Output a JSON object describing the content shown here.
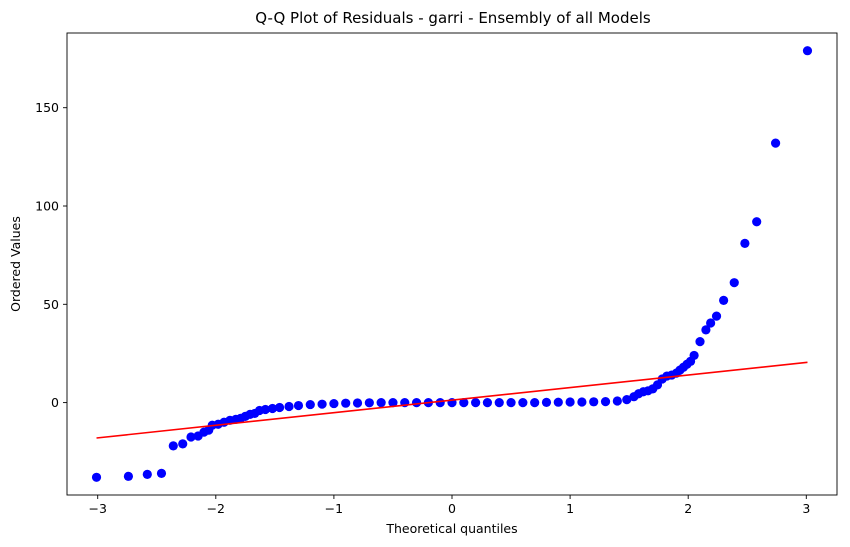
{
  "chart_data": {
    "type": "scatter",
    "title": "Q-Q Plot of Residuals - garri  - Ensembly of all Models",
    "xlabel": "Theoretical quantiles",
    "ylabel": "Ordered Values",
    "xlim": [
      -3.26,
      3.26
    ],
    "ylim": [
      -47,
      188
    ],
    "x_ticks": [
      -3,
      -2,
      -1,
      0,
      1,
      2,
      3
    ],
    "x_tick_labels": [
      "−3",
      "−2",
      "−1",
      "0",
      "1",
      "2",
      "3"
    ],
    "y_ticks": [
      0,
      50,
      100,
      150
    ],
    "y_tick_labels": [
      "0",
      "50",
      "100",
      "150"
    ],
    "grid": false,
    "series": [
      {
        "kind": "points",
        "color": "#0000ff",
        "points": [
          [
            -3.01,
            -38
          ],
          [
            -2.74,
            -37.5
          ],
          [
            -2.58,
            -36.5
          ],
          [
            -2.46,
            -36
          ],
          [
            -2.36,
            -22
          ],
          [
            -2.28,
            -21
          ],
          [
            -2.21,
            -17.5
          ],
          [
            -2.15,
            -17
          ],
          [
            -2.1,
            -15
          ],
          [
            -2.06,
            -14
          ],
          [
            -2.03,
            -11.5
          ],
          [
            -1.98,
            -11
          ],
          [
            -1.93,
            -10
          ],
          [
            -1.88,
            -9
          ],
          [
            -1.83,
            -8.5
          ],
          [
            -1.79,
            -8
          ],
          [
            -1.75,
            -7
          ],
          [
            -1.71,
            -6
          ],
          [
            -1.67,
            -5.5
          ],
          [
            -1.63,
            -4
          ],
          [
            -1.58,
            -3.5
          ],
          [
            -1.52,
            -3
          ],
          [
            -1.46,
            -2.5
          ],
          [
            -1.38,
            -2
          ],
          [
            -1.3,
            -1.5
          ],
          [
            -1.2,
            -1
          ],
          [
            -1.1,
            -0.8
          ],
          [
            -1.0,
            -0.5
          ],
          [
            -0.9,
            -0.3
          ],
          [
            -0.8,
            -0.2
          ],
          [
            -0.7,
            -0.1
          ],
          [
            -0.6,
            0
          ],
          [
            -0.5,
            0
          ],
          [
            -0.4,
            0
          ],
          [
            -0.3,
            0
          ],
          [
            -0.2,
            0
          ],
          [
            -0.1,
            0
          ],
          [
            0,
            0
          ],
          [
            0.1,
            0
          ],
          [
            0.2,
            0
          ],
          [
            0.3,
            0
          ],
          [
            0.4,
            0
          ],
          [
            0.5,
            0
          ],
          [
            0.6,
            0
          ],
          [
            0.7,
            0
          ],
          [
            0.8,
            0.1
          ],
          [
            0.9,
            0.2
          ],
          [
            1.0,
            0.3
          ],
          [
            1.1,
            0.3
          ],
          [
            1.2,
            0.4
          ],
          [
            1.3,
            0.5
          ],
          [
            1.4,
            0.8
          ],
          [
            1.48,
            1.5
          ],
          [
            1.54,
            3
          ],
          [
            1.58,
            4.5
          ],
          [
            1.62,
            5.5
          ],
          [
            1.66,
            6
          ],
          [
            1.7,
            7
          ],
          [
            1.74,
            9
          ],
          [
            1.78,
            12
          ],
          [
            1.82,
            13.5
          ],
          [
            1.86,
            14
          ],
          [
            1.9,
            15
          ],
          [
            1.93,
            16.5
          ],
          [
            1.96,
            18
          ],
          [
            1.99,
            19.5
          ],
          [
            2.02,
            21
          ],
          [
            2.05,
            24
          ],
          [
            2.1,
            31
          ],
          [
            2.15,
            37
          ],
          [
            2.19,
            40.5
          ],
          [
            2.24,
            44
          ],
          [
            2.3,
            52
          ],
          [
            2.39,
            61
          ],
          [
            2.48,
            81
          ],
          [
            2.58,
            92
          ],
          [
            2.74,
            132
          ],
          [
            3.01,
            179
          ]
        ]
      },
      {
        "kind": "line",
        "color": "#ff0000",
        "points": [
          [
            -3.01,
            -18
          ],
          [
            3.01,
            20.5
          ]
        ]
      }
    ]
  }
}
